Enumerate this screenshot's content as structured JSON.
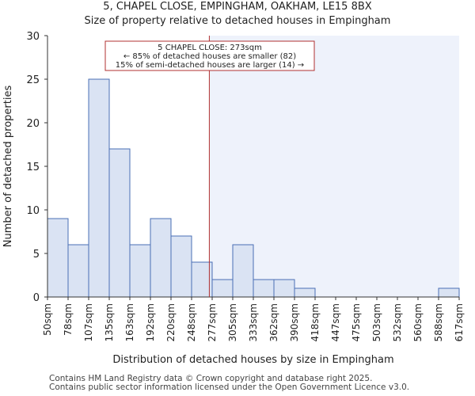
{
  "header": {
    "title_line1": "5, CHAPEL CLOSE, EMPINGHAM, OAKHAM, LE15 8BX",
    "title_line2": "Size of property relative to detached houses in Empingham"
  },
  "footer": {
    "line1": "Contains HM Land Registry data © Crown copyright and database right 2025.",
    "line2": "Contains public sector information licensed under the Open Government Licence v3.0."
  },
  "colors": {
    "bar_fill": "#dae3f3",
    "bar_stroke": "#4a6fb5",
    "highlight_region": "#eef2fb",
    "marker_line": "#b03030",
    "annotation_border": "#b03030"
  },
  "chart_data": {
    "type": "bar",
    "title": "5, CHAPEL CLOSE, EMPINGHAM, OAKHAM, LE15 8BX",
    "subtitle": "Size of property relative to detached houses in Empingham",
    "xlabel": "Distribution of detached houses by size in Empingham",
    "ylabel": "Number of detached properties",
    "bin_edges": [
      50,
      78,
      107,
      135,
      163,
      192,
      220,
      248,
      277,
      305,
      333,
      362,
      390,
      418,
      447,
      475,
      503,
      532,
      560,
      588,
      617
    ],
    "tick_labels": [
      "50sqm",
      "78sqm",
      "107sqm",
      "135sqm",
      "163sqm",
      "192sqm",
      "220sqm",
      "248sqm",
      "277sqm",
      "305sqm",
      "333sqm",
      "362sqm",
      "390sqm",
      "418sqm",
      "447sqm",
      "475sqm",
      "503sqm",
      "532sqm",
      "560sqm",
      "588sqm",
      "617sqm"
    ],
    "values": [
      9,
      6,
      25,
      17,
      6,
      9,
      7,
      4,
      2,
      6,
      2,
      2,
      1,
      0,
      0,
      0,
      0,
      0,
      0,
      1
    ],
    "ylim": [
      0,
      30
    ],
    "yticks": [
      0,
      5,
      10,
      15,
      20,
      25,
      30
    ],
    "grid": false,
    "marker": {
      "value": 273,
      "annotation_lines": [
        "5 CHAPEL CLOSE: 273sqm",
        "← 85% of detached houses are smaller (82)",
        "15% of semi-detached houses are larger (14) →"
      ]
    }
  }
}
